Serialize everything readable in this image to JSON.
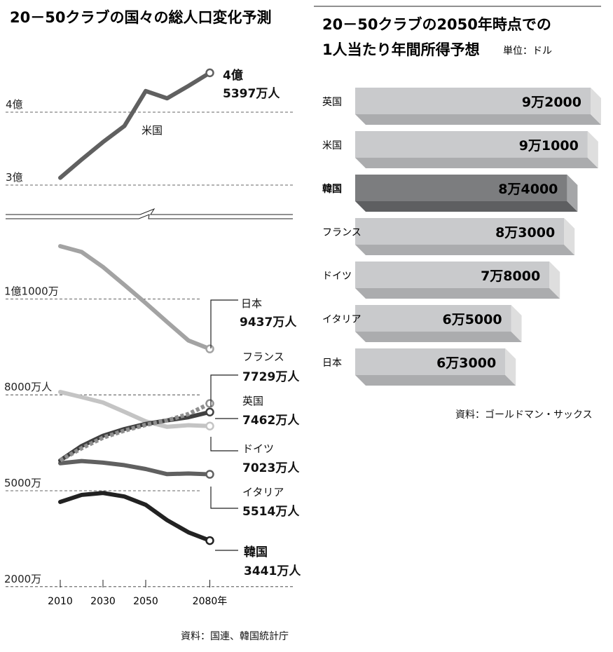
{
  "chart_data": [
    {
      "type": "line",
      "title": "20－50クラブの国々の総人口変化予測",
      "x": [
        2010,
        2020,
        2030,
        2040,
        2050,
        2060,
        2070,
        2080
      ],
      "x_tick_labels": [
        "2010",
        "2030",
        "2050",
        "2080年"
      ],
      "unit": "万人",
      "axis_break": true,
      "upper_panel": {
        "y_tick_labels": [
          "4億",
          "3億"
        ],
        "y_ticks": [
          40000,
          30000
        ],
        "series": [
          {
            "name": "米国",
            "values": [
              31000,
              33500,
              35900,
              38100,
              42900,
              41900,
              43600,
              45397
            ],
            "color": "#606060",
            "style": "solid",
            "end_label_line1": "4億",
            "end_label_line2": "5397万人"
          }
        ]
      },
      "lower_panel": {
        "y_tick_labels": [
          "1億1000万",
          "8000万人",
          "5000万",
          "2000万"
        ],
        "y_ticks": [
          11000,
          8000,
          5000,
          2000
        ],
        "series": [
          {
            "name": "日本",
            "values": [
              12650,
              12470,
              12000,
              11440,
              10870,
              10280,
              9700,
              9437
            ],
            "color": "#a3a3a3",
            "style": "solid",
            "end_label": "9437万人"
          },
          {
            "name": "フランス",
            "values": [
              5950,
              6330,
              6660,
              6880,
              7060,
              7200,
              7400,
              7729
            ],
            "color": "#8f8f8f",
            "style": "dotted",
            "end_label": "7729万人"
          },
          {
            "name": "英国",
            "values": [
              5950,
              6400,
              6720,
              6930,
              7090,
              7200,
              7300,
              7462
            ],
            "color": "#404040",
            "style": "solid",
            "end_label": "7462万人"
          },
          {
            "name": "ドイツ",
            "values": [
              8090,
              7930,
              7760,
              7470,
              7170,
              7000,
              7050,
              7023
            ],
            "color": "#c4c4c4",
            "style": "solid",
            "end_label": "7023万人"
          },
          {
            "name": "イタリア",
            "values": [
              5860,
              5930,
              5880,
              5800,
              5680,
              5520,
              5540,
              5514
            ],
            "color": "#606060",
            "style": "solid",
            "end_label": "5514万人"
          },
          {
            "name": "韓国",
            "values": [
              4650,
              4870,
              4930,
              4820,
              4560,
              4080,
              3700,
              3441
            ],
            "color": "#222222",
            "style": "solid",
            "end_label": "3441万人"
          }
        ]
      },
      "source": "資料：国連、韓国統計庁"
    },
    {
      "type": "bar",
      "orientation": "horizontal",
      "title_line1": "20－50クラブの2050年時点での",
      "title_line2": "1人当たり年間所得予想",
      "unit_label": "単位：ドル",
      "categories": [
        "英国",
        "米国",
        "韓国",
        "フランス",
        "ドイツ",
        "イタリア",
        "日本"
      ],
      "values": [
        92000,
        91000,
        84000,
        83000,
        78000,
        65000,
        63000
      ],
      "value_labels": [
        "9万2000",
        "9万1000",
        "8万4000",
        "8万3000",
        "7万8000",
        "6万5000",
        "6万3000"
      ],
      "highlight": "韓国",
      "colors": {
        "bar": "#c9cacc",
        "bar_shade": "#abacae",
        "bar_side": "#dedede",
        "highlight": "#7c7d7f",
        "highlight_shade": "#5e5f61"
      },
      "source": "資料：ゴールドマン・サックス"
    }
  ]
}
